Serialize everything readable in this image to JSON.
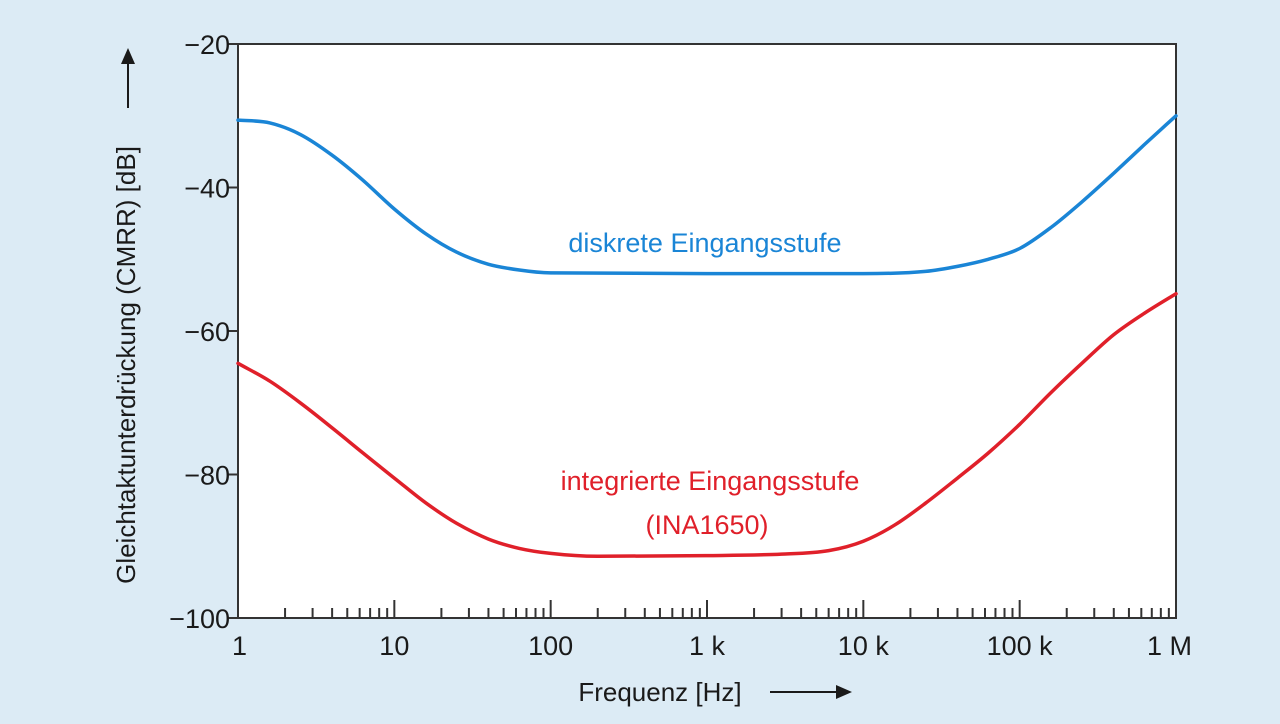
{
  "chart_data": {
    "type": "line",
    "title": "",
    "xlabel": "Frequenz [Hz]",
    "ylabel": "Gleichtaktunterdrückung (CMRR) [dB]",
    "xscale": "log",
    "xlim": [
      1,
      1000000
    ],
    "ylim": [
      -100,
      -20
    ],
    "grid": false,
    "legend": "none (series labelled directly on plot)",
    "x_ticks": [
      1,
      10,
      100,
      1000,
      10000,
      100000,
      1000000
    ],
    "x_tick_labels": [
      "1",
      "10",
      "100",
      "1 k",
      "10 k",
      "100 k",
      "1 M"
    ],
    "y_ticks": [
      -20,
      -40,
      -60,
      -80,
      -100
    ],
    "y_tick_labels": [
      "−20",
      "−40",
      "−60",
      "−80",
      "−100"
    ],
    "series": [
      {
        "name": "diskrete Eingangsstufe",
        "color": "#1a85d6",
        "points": [
          [
            1,
            -30.6
          ],
          [
            1.6,
            -31.0
          ],
          [
            2.5,
            -32.6
          ],
          [
            4,
            -35.5
          ],
          [
            6.3,
            -39.0
          ],
          [
            10,
            -43.0
          ],
          [
            16,
            -46.5
          ],
          [
            25,
            -49.0
          ],
          [
            40,
            -50.7
          ],
          [
            63,
            -51.5
          ],
          [
            100,
            -51.9
          ],
          [
            1000,
            -52.0
          ],
          [
            10000,
            -52.0
          ],
          [
            25000,
            -51.7
          ],
          [
            40000,
            -51.0
          ],
          [
            63000,
            -50.0
          ],
          [
            100000,
            -48.5
          ],
          [
            160000,
            -45.5
          ],
          [
            250000,
            -42.0
          ],
          [
            400000,
            -38.0
          ],
          [
            630000,
            -34.0
          ],
          [
            1000000,
            -30.0
          ]
        ]
      },
      {
        "name": "integrierte Eingangsstufe (INA1650)",
        "color": "#e0202a",
        "points": [
          [
            1,
            -64.5
          ],
          [
            1.6,
            -67.0
          ],
          [
            2.5,
            -70.0
          ],
          [
            4,
            -73.5
          ],
          [
            6.3,
            -77.0
          ],
          [
            10,
            -80.5
          ],
          [
            16,
            -84.0
          ],
          [
            25,
            -86.8
          ],
          [
            40,
            -89.0
          ],
          [
            63,
            -90.3
          ],
          [
            100,
            -91.0
          ],
          [
            200,
            -91.4
          ],
          [
            1000,
            -91.3
          ],
          [
            3000,
            -91.1
          ],
          [
            6000,
            -90.6
          ],
          [
            10000,
            -89.3
          ],
          [
            16000,
            -87.0
          ],
          [
            25000,
            -84.0
          ],
          [
            40000,
            -80.5
          ],
          [
            63000,
            -77.0
          ],
          [
            100000,
            -73.0
          ],
          [
            160000,
            -68.5
          ],
          [
            250000,
            -64.5
          ],
          [
            400000,
            -60.5
          ],
          [
            630000,
            -57.5
          ],
          [
            1000000,
            -54.8
          ]
        ]
      }
    ],
    "annotations": [
      {
        "series": 0,
        "lines": [
          "diskrete Eingangsstufe"
        ]
      },
      {
        "series": 1,
        "lines": [
          "integrierte Eingangsstufe",
          "(INA1650)"
        ]
      }
    ]
  }
}
